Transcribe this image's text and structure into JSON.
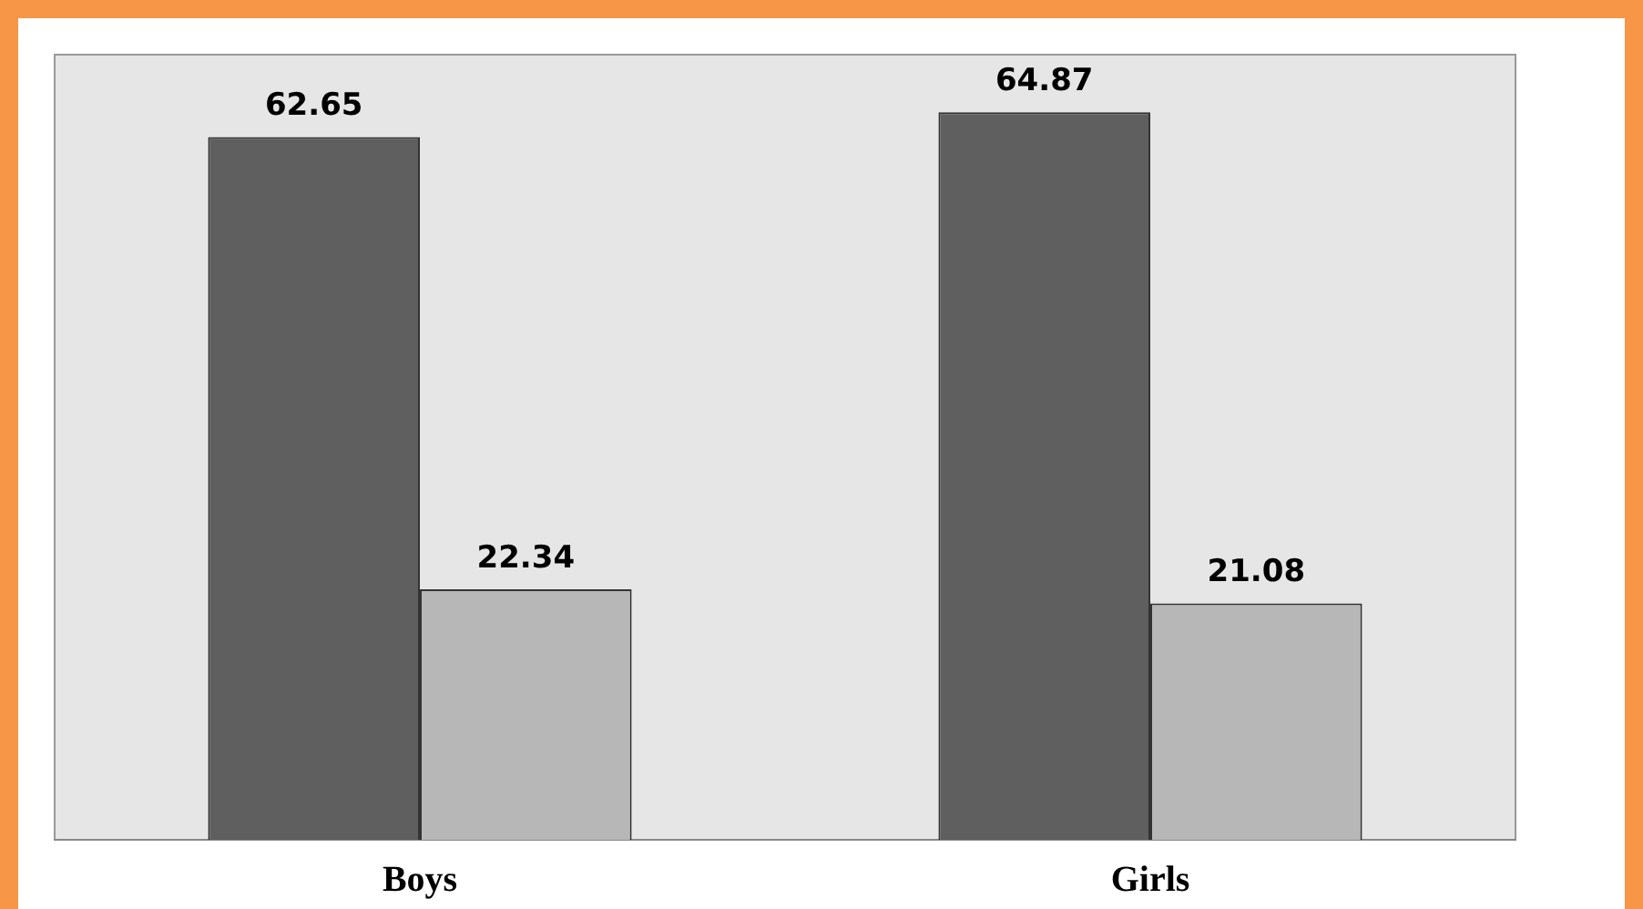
{
  "chart_data": {
    "type": "bar",
    "categories": [
      "Boys",
      "Girls"
    ],
    "series": [
      {
        "color": "#5f5f5f",
        "values": [
          62.65,
          64.87
        ]
      },
      {
        "color": "#b7b7b7",
        "values": [
          22.34,
          21.08
        ]
      }
    ],
    "data_labels": true,
    "grid": false,
    "legend": false
  }
}
